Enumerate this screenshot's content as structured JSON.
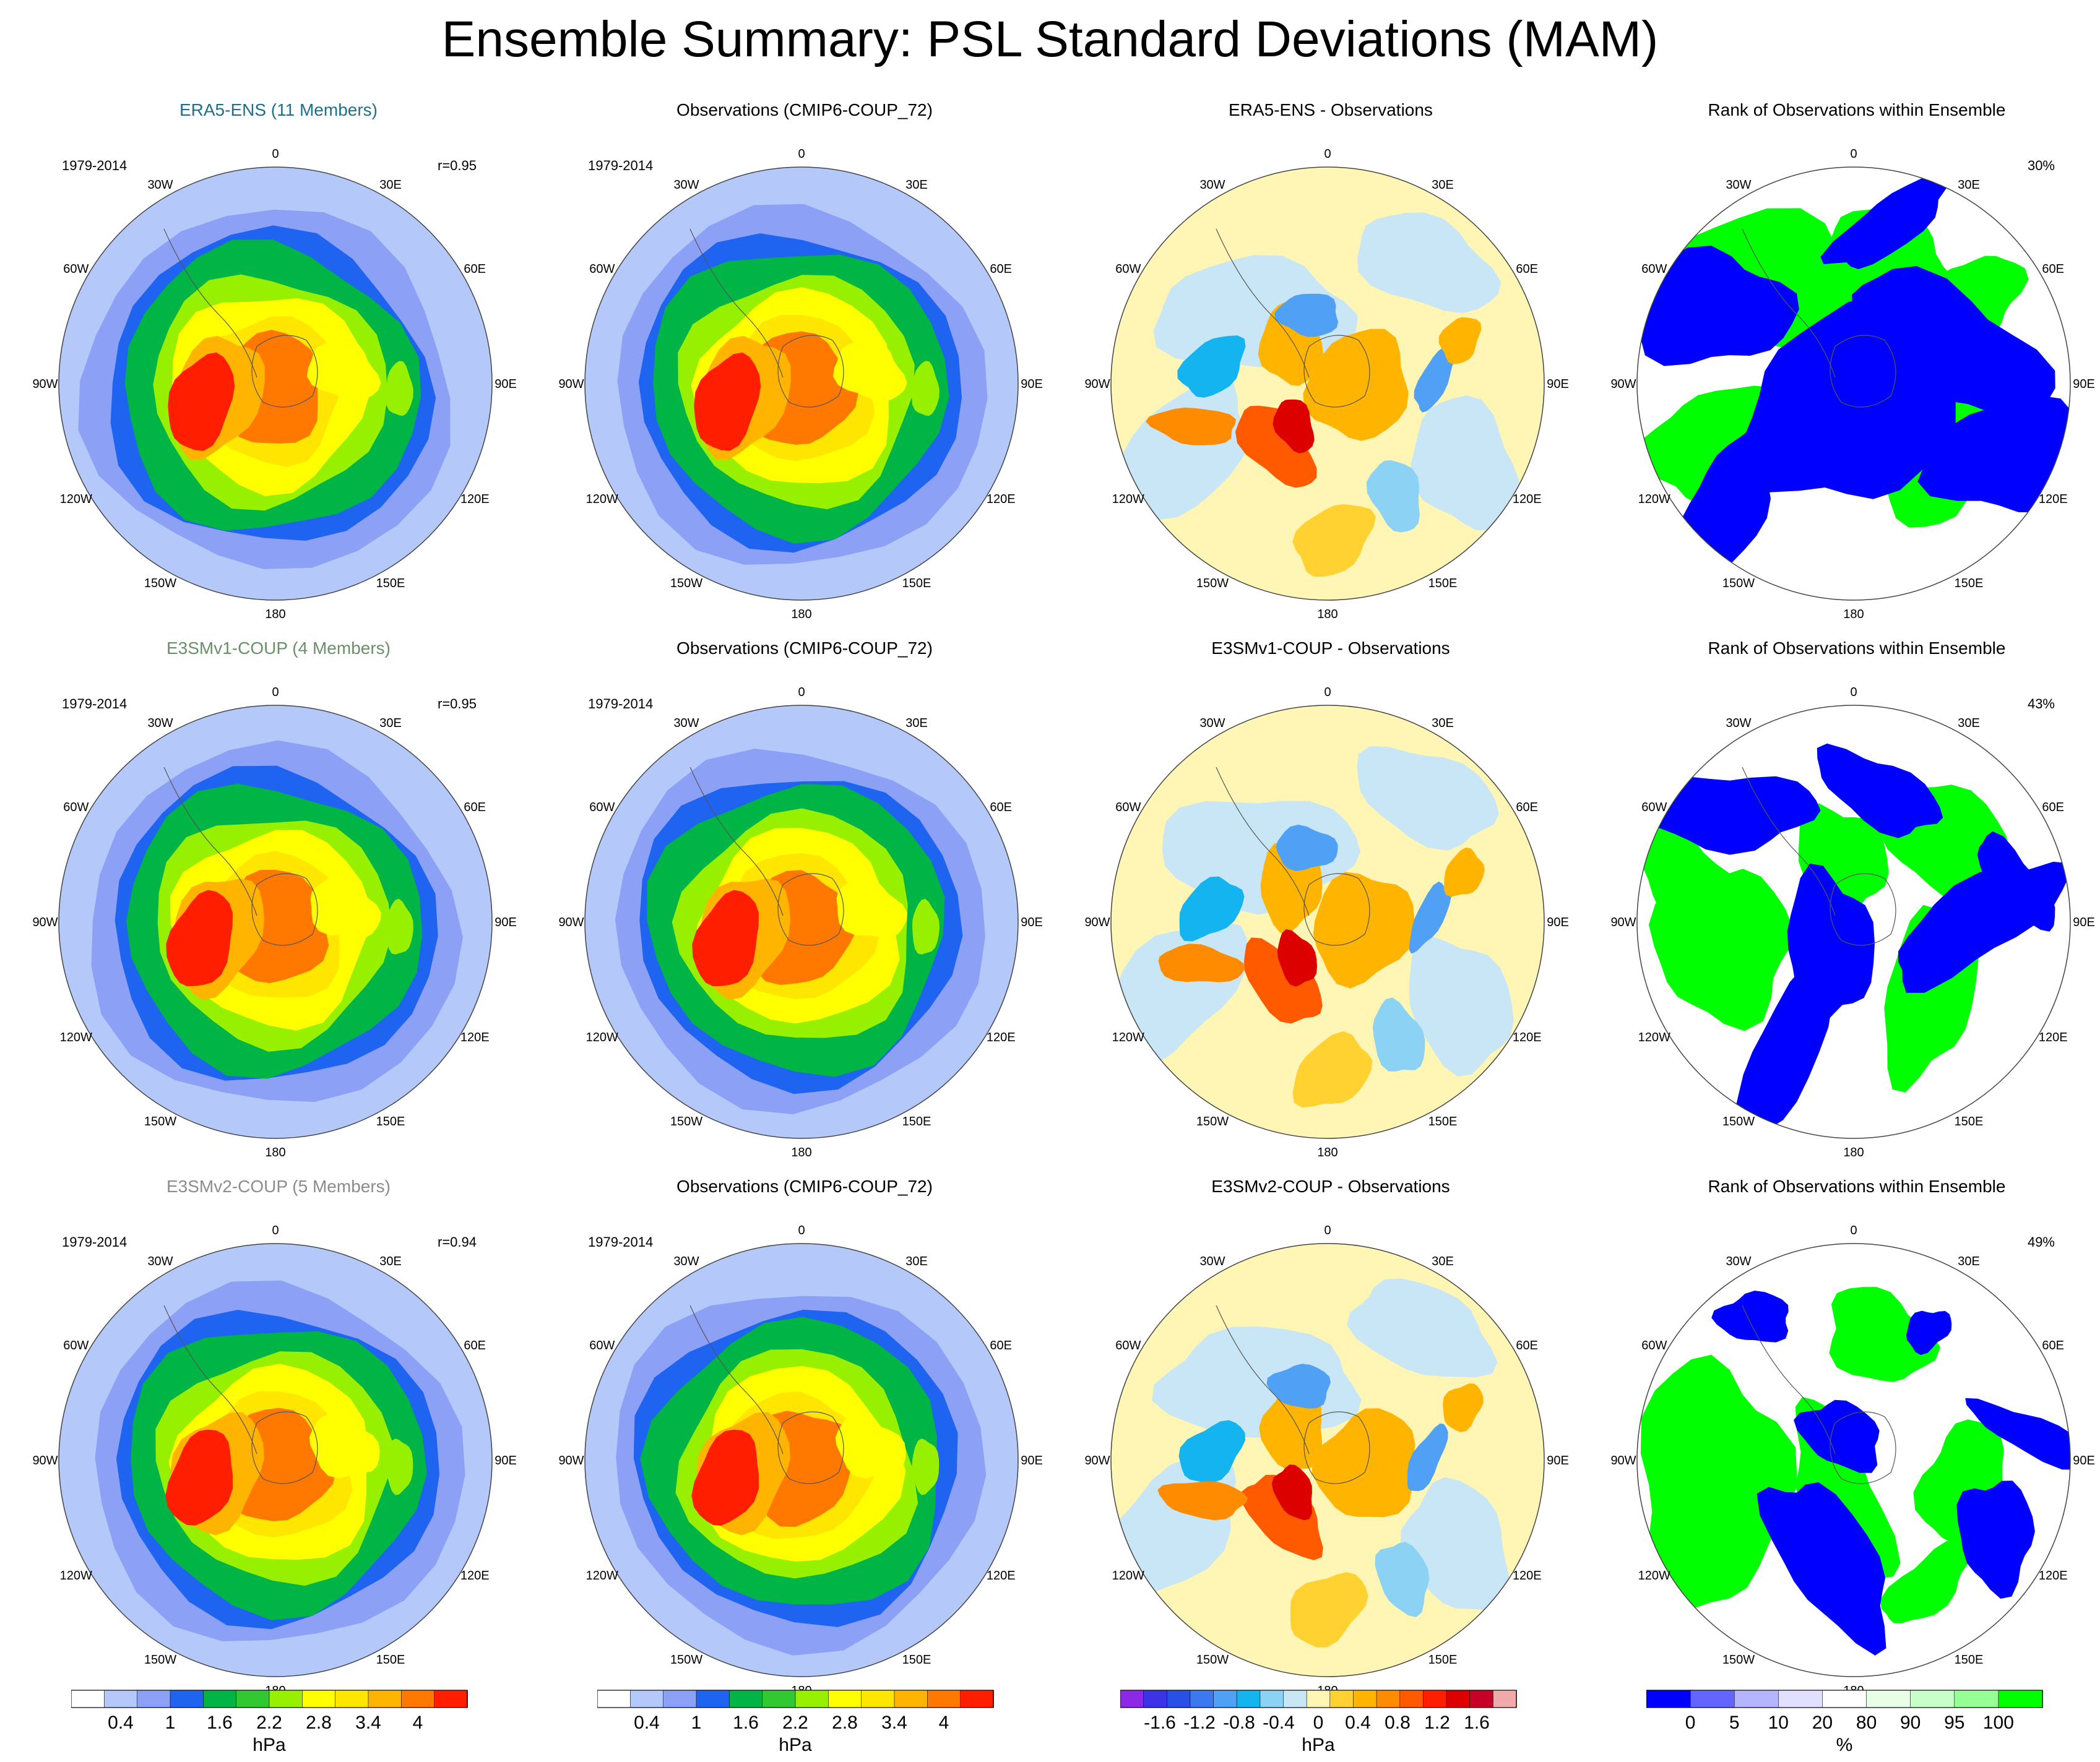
{
  "title": "Ensemble Summary: PSL Standard Deviations (MAM)",
  "colors": {
    "era5_title": "#1f6f8b",
    "e3smv1_title": "#6a8f6a",
    "e3smv2_title": "#8c8c8c",
    "rank_low": "#0000dd",
    "rank_high": "#00ff00",
    "diff_positive": "#ff4500",
    "diff_negative": "#1e90ff"
  },
  "longitude_labels": [
    "0",
    "30E",
    "60E",
    "90E",
    "120E",
    "150E",
    "180",
    "150W",
    "120W",
    "90W",
    "60W",
    "30W"
  ],
  "rows": [
    {
      "ensemble": "ERA5-ENS (11 Members)",
      "title_color": "#1f6f8b",
      "years": "1979-2014",
      "correlation": "r=0.95",
      "obs_title": "Observations (CMIP6-COUP_72)",
      "obs_years": "1979-2014",
      "diff_title": "ERA5-ENS - Observations",
      "rank_title": "Rank of Observations within Ensemble",
      "rank_percent": "30%"
    },
    {
      "ensemble": "E3SMv1-COUP (4 Members)",
      "title_color": "#6a8f6a",
      "years": "1979-2014",
      "correlation": "r=0.95",
      "obs_title": "Observations (CMIP6-COUP_72)",
      "obs_years": "1979-2014",
      "diff_title": "E3SMv1-COUP - Observations",
      "rank_title": "Rank of Observations within Ensemble",
      "rank_percent": "43%"
    },
    {
      "ensemble": "E3SMv2-COUP (5 Members)",
      "title_color": "#8c8c8c",
      "years": "1979-2014",
      "correlation": "r=0.94",
      "obs_title": "Observations (CMIP6-COUP_72)",
      "obs_years": "1979-2014",
      "diff_title": "E3SMv2-COUP - Observations",
      "rank_title": "Rank of Observations within Ensemble",
      "rank_percent": "49%"
    }
  ],
  "legends": {
    "stddev": {
      "unit": "hPa",
      "colors": [
        "#ffffff",
        "#b4c8fa",
        "#8ca0f5",
        "#1e64f0",
        "#00b446",
        "#32c832",
        "#96f000",
        "#ffff00",
        "#ffe600",
        "#ffb400",
        "#ff7800",
        "#ff1e00"
      ],
      "labels": [
        "0.4",
        "1",
        "1.6",
        "2.2",
        "2.8",
        "3.4",
        "4"
      ]
    },
    "difference": {
      "unit": "hPa",
      "colors": [
        "#8c28e6",
        "#3c32e6",
        "#2850e6",
        "#3c78f0",
        "#50a0f5",
        "#14b4f0",
        "#8cd2f5",
        "#c8e6f5",
        "#fff5b4",
        "#ffd232",
        "#ffb400",
        "#ff8c00",
        "#ff5a00",
        "#ff1e00",
        "#dc0000",
        "#c80028",
        "#f0aaaa"
      ],
      "labels": [
        "-1.6",
        "-1.2",
        "-0.8",
        "-0.4",
        "0",
        "0.4",
        "0.8",
        "1.2",
        "1.6"
      ]
    },
    "rank": {
      "unit": "%",
      "colors": [
        "#0000ff",
        "#6464ff",
        "#b4b4ff",
        "#e1e1ff",
        "#ffffff",
        "#e6ffe6",
        "#c8ffc8",
        "#96ff96",
        "#00ff00"
      ],
      "labels": [
        "0",
        "5",
        "10",
        "20",
        "80",
        "90",
        "95",
        "100"
      ]
    }
  }
}
